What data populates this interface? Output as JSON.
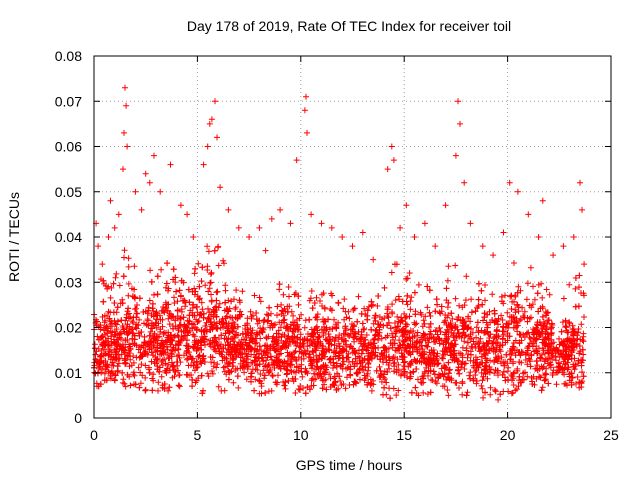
{
  "chart_data": {
    "type": "scatter",
    "title": "Day 178 of 2019, Rate Of TEC Index for receiver toil",
    "xlabel": "GPS time / hours",
    "ylabel": "ROTI / TECUs",
    "xlim": [
      0,
      25
    ],
    "ylim": [
      0,
      0.08
    ],
    "xticks": [
      0,
      5,
      10,
      15,
      20,
      25
    ],
    "xtick_labels": [
      "0",
      "5",
      "10",
      "15",
      "20",
      "25"
    ],
    "yticks": [
      0,
      0.01,
      0.02,
      0.03,
      0.04,
      0.05,
      0.06,
      0.07,
      0.08
    ],
    "ytick_labels": [
      "0",
      "0.01",
      "0.02",
      "0.03",
      "0.04",
      "0.05",
      "0.06",
      "0.07",
      "0.08"
    ],
    "grid": true,
    "marker": "+",
    "marker_color": "#ff0000",
    "x_range_of_data": [
      0.0,
      23.7
    ],
    "series": [
      {
        "name": "ROTI",
        "points": [
          [
            0.1,
            0.043
          ],
          [
            0.2,
            0.038
          ],
          [
            0.4,
            0.034
          ],
          [
            0.7,
            0.04
          ],
          [
            0.8,
            0.048
          ],
          [
            1.0,
            0.042
          ],
          [
            1.2,
            0.045
          ],
          [
            1.4,
            0.055
          ],
          [
            1.45,
            0.063
          ],
          [
            1.5,
            0.073
          ],
          [
            1.55,
            0.069
          ],
          [
            1.6,
            0.06
          ],
          [
            2.0,
            0.05
          ],
          [
            2.3,
            0.046
          ],
          [
            2.5,
            0.054
          ],
          [
            2.7,
            0.052
          ],
          [
            2.9,
            0.058
          ],
          [
            3.2,
            0.05
          ],
          [
            3.7,
            0.056
          ],
          [
            4.2,
            0.047
          ],
          [
            4.5,
            0.045
          ],
          [
            4.8,
            0.04
          ],
          [
            5.3,
            0.056
          ],
          [
            5.5,
            0.06
          ],
          [
            5.6,
            0.065
          ],
          [
            5.7,
            0.066
          ],
          [
            5.85,
            0.07
          ],
          [
            5.95,
            0.062
          ],
          [
            6.1,
            0.051
          ],
          [
            6.5,
            0.046
          ],
          [
            7.0,
            0.042
          ],
          [
            7.5,
            0.04
          ],
          [
            8.0,
            0.042
          ],
          [
            8.3,
            0.037
          ],
          [
            8.6,
            0.044
          ],
          [
            9.0,
            0.046
          ],
          [
            9.5,
            0.043
          ],
          [
            9.8,
            0.057
          ],
          [
            10.2,
            0.068
          ],
          [
            10.25,
            0.071
          ],
          [
            10.3,
            0.063
          ],
          [
            10.5,
            0.045
          ],
          [
            11.0,
            0.043
          ],
          [
            11.5,
            0.042
          ],
          [
            12.0,
            0.04
          ],
          [
            12.5,
            0.038
          ],
          [
            13.0,
            0.041
          ],
          [
            13.5,
            0.035
          ],
          [
            14.2,
            0.055
          ],
          [
            14.4,
            0.06
          ],
          [
            14.5,
            0.057
          ],
          [
            14.8,
            0.042
          ],
          [
            15.1,
            0.047
          ],
          [
            15.5,
            0.04
          ],
          [
            16.0,
            0.043
          ],
          [
            16.5,
            0.038
          ],
          [
            17.0,
            0.047
          ],
          [
            17.5,
            0.058
          ],
          [
            17.6,
            0.07
          ],
          [
            17.7,
            0.065
          ],
          [
            17.9,
            0.052
          ],
          [
            18.2,
            0.043
          ],
          [
            18.8,
            0.038
          ],
          [
            19.3,
            0.036
          ],
          [
            19.8,
            0.041
          ],
          [
            20.1,
            0.052
          ],
          [
            20.5,
            0.05
          ],
          [
            21.0,
            0.045
          ],
          [
            21.5,
            0.04
          ],
          [
            21.7,
            0.048
          ],
          [
            22.2,
            0.036
          ],
          [
            22.7,
            0.038
          ],
          [
            23.2,
            0.04
          ],
          [
            23.5,
            0.052
          ],
          [
            23.6,
            0.046
          ],
          [
            23.7,
            0.034
          ]
        ],
        "band": {
          "description": "dense cloud of points",
          "x": [
            0,
            0.5,
            1,
            1.5,
            2,
            2.5,
            3,
            3.5,
            4,
            4.5,
            5,
            5.5,
            6,
            6.5,
            7,
            7.5,
            8,
            8.5,
            9,
            9.5,
            10,
            10.5,
            11,
            11.5,
            12,
            12.5,
            13,
            13.5,
            14,
            14.5,
            15,
            15.5,
            16,
            16.5,
            17,
            17.5,
            18,
            18.5,
            19,
            19.5,
            20,
            20.5,
            21,
            21.5,
            22,
            22.5,
            23,
            23.5
          ],
          "low": [
            0.007,
            0.007,
            0.008,
            0.007,
            0.006,
            0.006,
            0.006,
            0.006,
            0.006,
            0.006,
            0.005,
            0.006,
            0.006,
            0.006,
            0.006,
            0.006,
            0.005,
            0.006,
            0.006,
            0.006,
            0.005,
            0.006,
            0.006,
            0.006,
            0.006,
            0.005,
            0.006,
            0.005,
            0.005,
            0.004,
            0.005,
            0.005,
            0.005,
            0.006,
            0.005,
            0.005,
            0.005,
            0.005,
            0.004,
            0.004,
            0.004,
            0.005,
            0.005,
            0.005,
            0.006,
            0.008,
            0.007,
            0.006
          ],
          "high": [
            0.035,
            0.03,
            0.033,
            0.038,
            0.035,
            0.033,
            0.034,
            0.036,
            0.037,
            0.036,
            0.035,
            0.039,
            0.038,
            0.033,
            0.03,
            0.03,
            0.029,
            0.03,
            0.032,
            0.033,
            0.033,
            0.031,
            0.03,
            0.03,
            0.029,
            0.029,
            0.028,
            0.027,
            0.03,
            0.035,
            0.034,
            0.031,
            0.03,
            0.031,
            0.033,
            0.037,
            0.034,
            0.031,
            0.03,
            0.031,
            0.034,
            0.035,
            0.034,
            0.033,
            0.028,
            0.025,
            0.03,
            0.032
          ],
          "center": [
            0.016,
            0.015,
            0.016,
            0.017,
            0.016,
            0.016,
            0.016,
            0.017,
            0.018,
            0.018,
            0.017,
            0.019,
            0.019,
            0.017,
            0.016,
            0.016,
            0.015,
            0.016,
            0.016,
            0.016,
            0.016,
            0.016,
            0.015,
            0.015,
            0.015,
            0.015,
            0.015,
            0.014,
            0.015,
            0.016,
            0.016,
            0.016,
            0.015,
            0.015,
            0.015,
            0.016,
            0.016,
            0.015,
            0.015,
            0.015,
            0.016,
            0.017,
            0.017,
            0.017,
            0.015,
            0.014,
            0.015,
            0.015
          ]
        }
      }
    ]
  }
}
